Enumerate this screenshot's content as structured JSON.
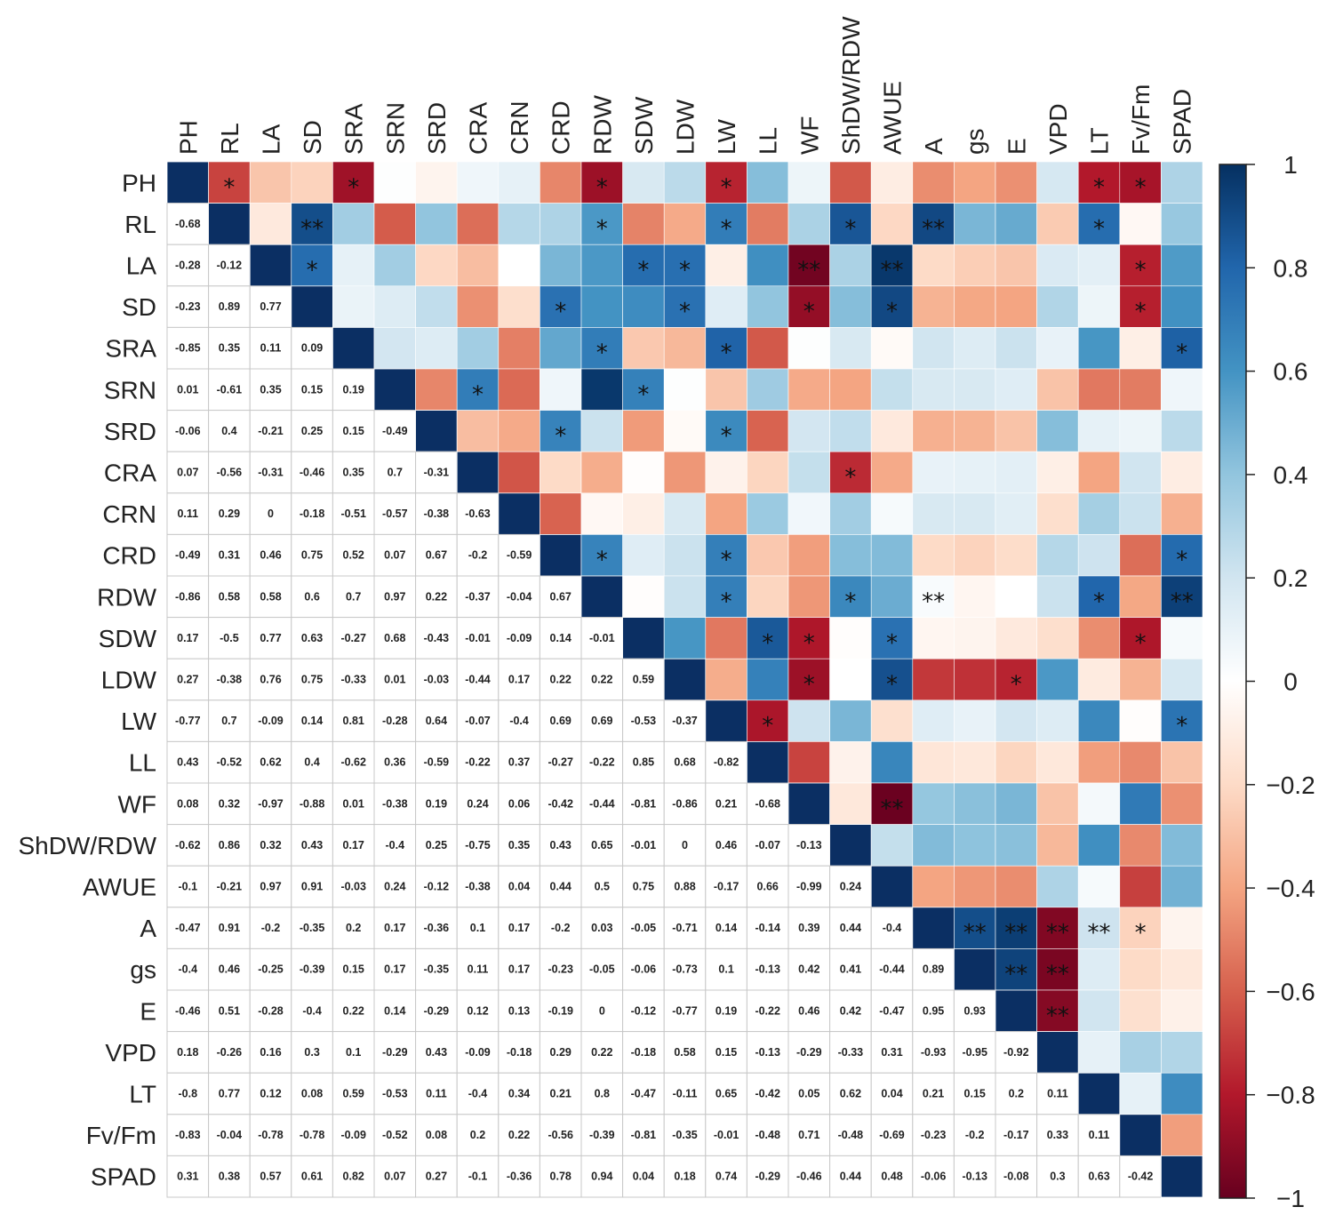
{
  "chart_data": {
    "type": "heatmap",
    "title": "",
    "variables": [
      "PH",
      "RL",
      "LA",
      "SD",
      "SRA",
      "SRN",
      "SRD",
      "CRA",
      "CRN",
      "CRD",
      "RDW",
      "SDW",
      "LDW",
      "LW",
      "LL",
      "WF",
      "ShDW/RDW",
      "AWUE",
      "A",
      "gs",
      "E",
      "VPD",
      "LT",
      "Fv/Fm",
      "SPAD"
    ],
    "lower_triangle_values": [
      [],
      [
        "-0.68"
      ],
      [
        "-0.28",
        "-0.12"
      ],
      [
        "-0.23",
        "0.89",
        "0.77"
      ],
      [
        "-0.85",
        "0.35",
        "0.11",
        "0.09"
      ],
      [
        "0.01",
        "-0.61",
        "0.35",
        "0.15",
        "0.19"
      ],
      [
        "-0.06",
        "0.4",
        "-0.21",
        "0.25",
        "0.15",
        "-0.49"
      ],
      [
        "0.07",
        "-0.56",
        "-0.31",
        "-0.46",
        "0.35",
        "0.7",
        "-0.31"
      ],
      [
        "0.11",
        "0.29",
        "0",
        "-0.18",
        "-0.51",
        "-0.57",
        "-0.38",
        "-0.63"
      ],
      [
        "-0.49",
        "0.31",
        "0.46",
        "0.75",
        "0.52",
        "0.07",
        "0.67",
        "-0.2",
        "-0.59"
      ],
      [
        "-0.86",
        "0.58",
        "0.58",
        "0.6",
        "0.7",
        "0.97",
        "0.22",
        "-0.37",
        "-0.04",
        "0.67"
      ],
      [
        "0.17",
        "-0.5",
        "0.77",
        "0.63",
        "-0.27",
        "0.68",
        "-0.43",
        "-0.01",
        "-0.09",
        "0.14",
        "-0.01"
      ],
      [
        "0.27",
        "-0.38",
        "0.76",
        "0.75",
        "-0.33",
        "0.01",
        "-0.03",
        "-0.44",
        "0.17",
        "0.22",
        "0.22",
        "0.59"
      ],
      [
        "-0.77",
        "0.7",
        "-0.09",
        "0.14",
        "0.81",
        "-0.28",
        "0.64",
        "-0.07",
        "-0.4",
        "0.69",
        "0.69",
        "-0.53",
        "-0.37"
      ],
      [
        "0.43",
        "-0.52",
        "0.62",
        "0.4",
        "-0.62",
        "0.36",
        "-0.59",
        "-0.22",
        "0.37",
        "-0.27",
        "-0.22",
        "0.85",
        "0.68",
        "-0.82"
      ],
      [
        "0.08",
        "0.32",
        "-0.97",
        "-0.88",
        "0.01",
        "-0.38",
        "0.19",
        "0.24",
        "0.06",
        "-0.42",
        "-0.44",
        "-0.81",
        "-0.86",
        "0.21",
        "-0.68"
      ],
      [
        "-0.62",
        "0.86",
        "0.32",
        "0.43",
        "0.17",
        "-0.4",
        "0.25",
        "-0.75",
        "0.35",
        "0.43",
        "0.65",
        "-0.01",
        "0",
        "0.46",
        "-0.07",
        "-0.13"
      ],
      [
        "-0.1",
        "-0.21",
        "0.97",
        "0.91",
        "-0.03",
        "0.24",
        "-0.12",
        "-0.38",
        "0.04",
        "0.44",
        "0.5",
        "0.75",
        "0.88",
        "-0.17",
        "0.66",
        "-0.99",
        "0.24"
      ],
      [
        "-0.47",
        "0.91",
        "-0.2",
        "-0.35",
        "0.2",
        "0.17",
        "-0.36",
        "0.1",
        "0.17",
        "-0.2",
        "0.03",
        "-0.05",
        "-0.71",
        "0.14",
        "-0.14",
        "0.39",
        "0.44",
        "-0.4"
      ],
      [
        "-0.4",
        "0.46",
        "-0.25",
        "-0.39",
        "0.15",
        "0.17",
        "-0.35",
        "0.11",
        "0.17",
        "-0.23",
        "-0.05",
        "-0.06",
        "-0.73",
        "0.1",
        "-0.13",
        "0.42",
        "0.41",
        "-0.44",
        "0.89"
      ],
      [
        "-0.46",
        "0.51",
        "-0.28",
        "-0.4",
        "0.22",
        "0.14",
        "-0.29",
        "0.12",
        "0.13",
        "-0.19",
        "0",
        "-0.12",
        "-0.77",
        "0.19",
        "-0.22",
        "0.46",
        "0.42",
        "-0.47",
        "0.95",
        "0.93"
      ],
      [
        "0.18",
        "-0.26",
        "0.16",
        "0.3",
        "0.1",
        "-0.29",
        "0.43",
        "-0.09",
        "-0.18",
        "0.29",
        "0.22",
        "-0.18",
        "0.58",
        "0.15",
        "-0.13",
        "-0.29",
        "-0.33",
        "0.31",
        "-0.93",
        "-0.95",
        "-0.92"
      ],
      [
        "-0.8",
        "0.77",
        "0.12",
        "0.08",
        "0.59",
        "-0.53",
        "0.11",
        "-0.4",
        "0.34",
        "0.21",
        "0.8",
        "-0.47",
        "-0.11",
        "0.65",
        "-0.42",
        "0.05",
        "0.62",
        "0.04",
        "0.21",
        "0.15",
        "0.2",
        "0.11"
      ],
      [
        "-0.83",
        "-0.04",
        "-0.78",
        "-0.78",
        "-0.09",
        "-0.52",
        "0.08",
        "0.2",
        "0.22",
        "-0.56",
        "-0.39",
        "-0.81",
        "-0.35",
        "-0.01",
        "-0.48",
        "0.71",
        "-0.48",
        "-0.69",
        "-0.23",
        "-0.2",
        "-0.17",
        "0.33",
        "0.11"
      ],
      [
        "0.31",
        "0.38",
        "0.57",
        "0.61",
        "0.82",
        "0.07",
        "0.27",
        "-0.1",
        "-0.36",
        "0.78",
        "0.94",
        "0.04",
        "0.18",
        "0.74",
        "-0.29",
        "-0.46",
        "0.44",
        "0.48",
        "-0.06",
        "-0.13",
        "-0.08",
        "0.3",
        "0.63",
        "-0.42"
      ]
    ],
    "significance_marks": [
      {
        "row": "PH",
        "col": "RL",
        "mark": "*"
      },
      {
        "row": "PH",
        "col": "SRA",
        "mark": "*"
      },
      {
        "row": "PH",
        "col": "RDW",
        "mark": "*"
      },
      {
        "row": "PH",
        "col": "LW",
        "mark": "*"
      },
      {
        "row": "PH",
        "col": "LT",
        "mark": "*"
      },
      {
        "row": "PH",
        "col": "Fv/Fm",
        "mark": "*"
      },
      {
        "row": "RL",
        "col": "SD",
        "mark": "**"
      },
      {
        "row": "RL",
        "col": "RDW",
        "mark": "*"
      },
      {
        "row": "RL",
        "col": "LW",
        "mark": "*"
      },
      {
        "row": "RL",
        "col": "ShDW/RDW",
        "mark": "*"
      },
      {
        "row": "RL",
        "col": "A",
        "mark": "**"
      },
      {
        "row": "RL",
        "col": "LT",
        "mark": "*"
      },
      {
        "row": "LA",
        "col": "SD",
        "mark": "*"
      },
      {
        "row": "LA",
        "col": "SDW",
        "mark": "*"
      },
      {
        "row": "LA",
        "col": "LDW",
        "mark": "*"
      },
      {
        "row": "LA",
        "col": "WF",
        "mark": "**"
      },
      {
        "row": "LA",
        "col": "AWUE",
        "mark": "**"
      },
      {
        "row": "LA",
        "col": "Fv/Fm",
        "mark": "*"
      },
      {
        "row": "SD",
        "col": "CRD",
        "mark": "*"
      },
      {
        "row": "SD",
        "col": "LDW",
        "mark": "*"
      },
      {
        "row": "SD",
        "col": "WF",
        "mark": "*"
      },
      {
        "row": "SD",
        "col": "AWUE",
        "mark": "*"
      },
      {
        "row": "SD",
        "col": "Fv/Fm",
        "mark": "*"
      },
      {
        "row": "SRA",
        "col": "RDW",
        "mark": "*"
      },
      {
        "row": "SRA",
        "col": "LW",
        "mark": "*"
      },
      {
        "row": "SRA",
        "col": "SPAD",
        "mark": "*"
      },
      {
        "row": "SRN",
        "col": "CRA",
        "mark": "*"
      },
      {
        "row": "SRN",
        "col": "SDW",
        "mark": "*"
      },
      {
        "row": "SRD",
        "col": "CRD",
        "mark": "*"
      },
      {
        "row": "SRD",
        "col": "LW",
        "mark": "*"
      },
      {
        "row": "CRA",
        "col": "ShDW/RDW",
        "mark": "*"
      },
      {
        "row": "CRD",
        "col": "RDW",
        "mark": "*"
      },
      {
        "row": "CRD",
        "col": "LW",
        "mark": "*"
      },
      {
        "row": "CRD",
        "col": "SPAD",
        "mark": "*"
      },
      {
        "row": "RDW",
        "col": "LW",
        "mark": "*"
      },
      {
        "row": "RDW",
        "col": "ShDW/RDW",
        "mark": "*"
      },
      {
        "row": "RDW",
        "col": "A",
        "mark": "**"
      },
      {
        "row": "RDW",
        "col": "LT",
        "mark": "*"
      },
      {
        "row": "RDW",
        "col": "SPAD",
        "mark": "**"
      },
      {
        "row": "SDW",
        "col": "LL",
        "mark": "*"
      },
      {
        "row": "SDW",
        "col": "WF",
        "mark": "*"
      },
      {
        "row": "SDW",
        "col": "AWUE",
        "mark": "*"
      },
      {
        "row": "SDW",
        "col": "Fv/Fm",
        "mark": "*"
      },
      {
        "row": "LDW",
        "col": "WF",
        "mark": "*"
      },
      {
        "row": "LDW",
        "col": "AWUE",
        "mark": "*"
      },
      {
        "row": "LDW",
        "col": "E",
        "mark": "*"
      },
      {
        "row": "LW",
        "col": "LL",
        "mark": "*"
      },
      {
        "row": "LW",
        "col": "SPAD",
        "mark": "*"
      },
      {
        "row": "WF",
        "col": "AWUE",
        "mark": "**"
      },
      {
        "row": "A",
        "col": "gs",
        "mark": "**"
      },
      {
        "row": "A",
        "col": "E",
        "mark": "**"
      },
      {
        "row": "A",
        "col": "VPD",
        "mark": "**"
      },
      {
        "row": "A",
        "col": "LT",
        "mark": "**"
      },
      {
        "row": "A",
        "col": "Fv/Fm",
        "mark": "*"
      },
      {
        "row": "gs",
        "col": "E",
        "mark": "**"
      },
      {
        "row": "gs",
        "col": "VPD",
        "mark": "**"
      },
      {
        "row": "E",
        "col": "VPD",
        "mark": "**"
      }
    ],
    "colorbar": {
      "range": [
        -1,
        1
      ],
      "ticks": [
        1,
        0.8,
        0.6,
        0.4,
        0.2,
        0,
        -0.2,
        -0.4,
        -0.6,
        -0.8,
        -1
      ],
      "tick_labels": [
        "1",
        "0.8",
        "0.6",
        "0.4",
        "0.2",
        "0",
        "−0.2",
        "−0.4",
        "−0.6",
        "−0.8",
        "−1"
      ],
      "colors": [
        "#67001f",
        "#b2182b",
        "#d6604d",
        "#f4a582",
        "#fddbc7",
        "#ffffff",
        "#d1e5f0",
        "#92c5de",
        "#4393c3",
        "#2166ac",
        "#053061"
      ],
      "position": "right"
    },
    "diagonal_color": "#0b2f63",
    "grid_color": "#c8c8c8"
  }
}
